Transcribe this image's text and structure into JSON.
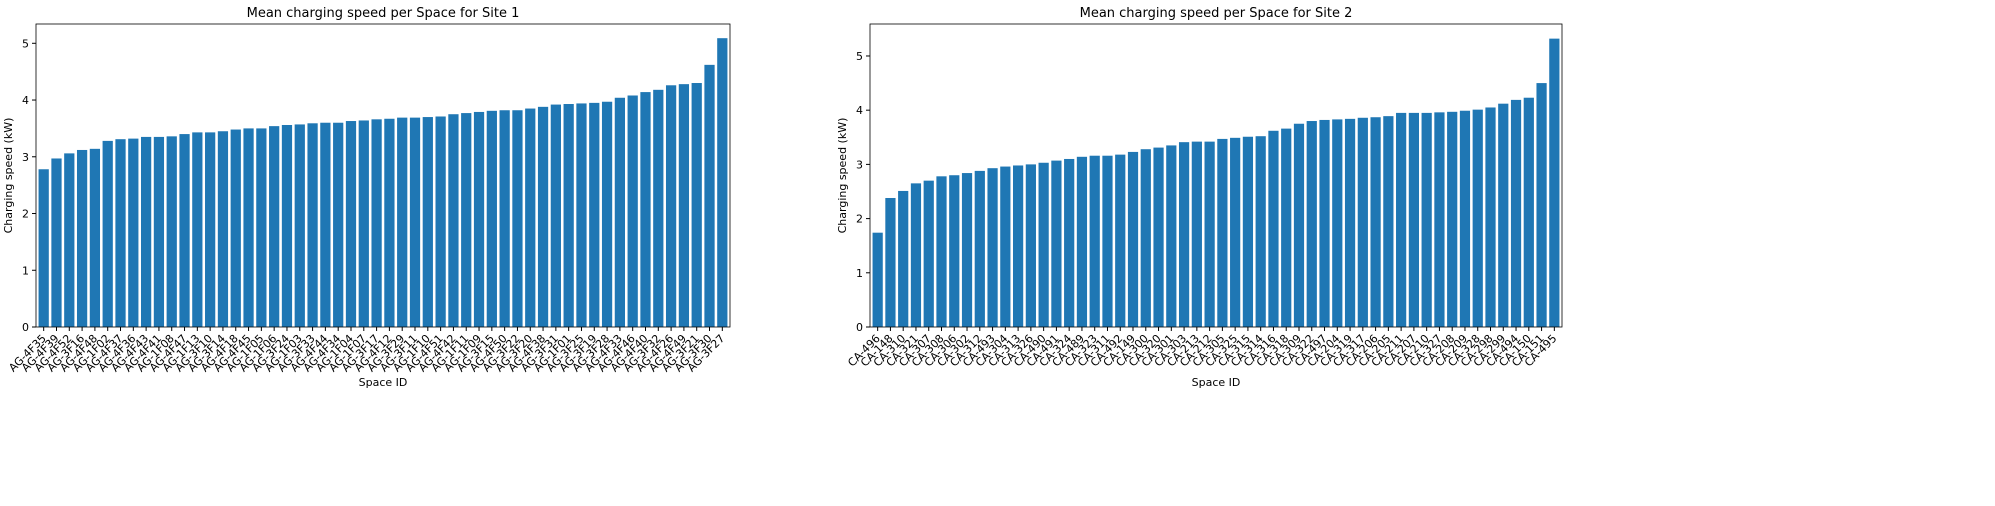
{
  "chart_data": [
    {
      "type": "bar",
      "title": "Mean charging speed per Space for Site 1",
      "x_label": "Space ID",
      "y_label": "Charging speed (kW)",
      "color": "#1f77b4",
      "categories": [
        "AG-4F35",
        "AG-4F39",
        "AG-4F52",
        "AG-3F16",
        "AG-4F48",
        "AG-1F02",
        "AG-4F37",
        "AG-4F36",
        "AG-4F43",
        "AG-4F41",
        "AG-1F08",
        "AG-4F47",
        "AG-1F13",
        "AG-3F10",
        "AG-3F14",
        "AG-4F18",
        "AG-4F45",
        "AG-1F05",
        "AG-1F06",
        "AG-3F24",
        "AG-1F03",
        "AG-3F33",
        "AG-4F44",
        "AG-4F34",
        "AG-1F04",
        "AG-1F07",
        "AG-3F17",
        "AG-4F12",
        "AG-3F29",
        "AG-3F11",
        "AG-1F10",
        "AG-4F51",
        "AG-4F42",
        "AG-1F11",
        "AG-1F09",
        "AG-3F15",
        "AG-4F50",
        "AG-3F22",
        "AG-3F20",
        "AG-4F38",
        "AG-3F31",
        "AG-1F01",
        "AG-3F25",
        "AG-3F19",
        "AG-3F28",
        "AG-4F33",
        "AG-4F46",
        "AG-4F40",
        "AG-3F32",
        "AG-4F26",
        "AG-4F49",
        "AG-3F21",
        "AG-3F30",
        "AG-3F27"
      ],
      "values": [
        2.78,
        2.97,
        3.06,
        3.12,
        3.14,
        3.28,
        3.31,
        3.32,
        3.35,
        3.35,
        3.36,
        3.4,
        3.43,
        3.43,
        3.45,
        3.48,
        3.5,
        3.5,
        3.54,
        3.56,
        3.57,
        3.59,
        3.6,
        3.6,
        3.63,
        3.64,
        3.66,
        3.67,
        3.69,
        3.69,
        3.7,
        3.71,
        3.75,
        3.77,
        3.79,
        3.81,
        3.82,
        3.82,
        3.85,
        3.88,
        3.92,
        3.93,
        3.94,
        3.95,
        3.97,
        4.04,
        4.08,
        4.14,
        4.18,
        4.26,
        4.28,
        4.3,
        4.62,
        5.09
      ],
      "ylim": [
        0,
        5.34
      ],
      "yticks": [
        0,
        1,
        2,
        3,
        4,
        5
      ]
    },
    {
      "type": "bar",
      "title": "Mean charging speed per Space for Site 2",
      "x_label": "Space ID",
      "y_label": "Charging speed (kW)",
      "color": "#1f77b4",
      "categories": [
        "CA-496",
        "CA-148",
        "CA-310",
        "CA-321",
        "CA-307",
        "CA-308",
        "CA-306",
        "CA-302",
        "CA-312",
        "CA-493",
        "CA-304",
        "CA-313",
        "CA-326",
        "CA-490",
        "CA-491",
        "CA-324",
        "CA-489",
        "CA-323",
        "CA-311",
        "CA-492",
        "CA-149",
        "CA-300",
        "CA-320",
        "CA-301",
        "CA-303",
        "CA-213",
        "CA-212",
        "CA-305",
        "CA-325",
        "CA-315",
        "CA-314",
        "CA-316",
        "CA-318",
        "CA-309",
        "CA-322",
        "CA-497",
        "CA-204",
        "CA-319",
        "CA-317",
        "CA-206",
        "CA-205",
        "CA-211",
        "CA-207",
        "CA-210",
        "CA-327",
        "CA-208",
        "CA-209",
        "CA-328",
        "CA-298",
        "CA-299",
        "CA-494",
        "CA-150",
        "CA-151",
        "CA-495"
      ],
      "values": [
        1.74,
        2.38,
        2.51,
        2.65,
        2.7,
        2.78,
        2.8,
        2.84,
        2.88,
        2.93,
        2.96,
        2.98,
        3.0,
        3.03,
        3.07,
        3.1,
        3.14,
        3.16,
        3.16,
        3.18,
        3.23,
        3.28,
        3.31,
        3.35,
        3.41,
        3.42,
        3.42,
        3.47,
        3.49,
        3.51,
        3.52,
        3.62,
        3.66,
        3.75,
        3.8,
        3.82,
        3.83,
        3.84,
        3.86,
        3.87,
        3.89,
        3.95,
        3.95,
        3.95,
        3.96,
        3.97,
        3.99,
        4.01,
        4.05,
        4.12,
        4.19,
        4.23,
        4.5,
        5.32
      ],
      "ylim": [
        0,
        5.59
      ],
      "yticks": [
        0,
        1,
        2,
        3,
        4,
        5
      ]
    }
  ]
}
